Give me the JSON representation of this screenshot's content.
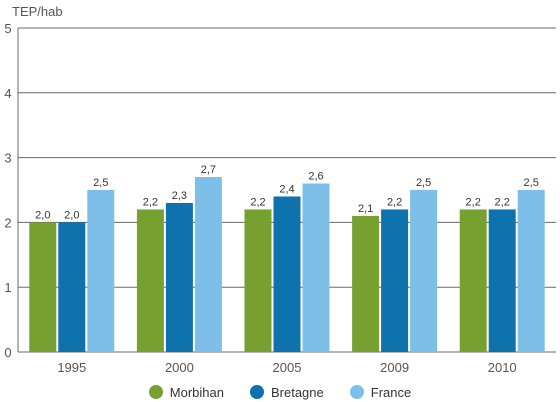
{
  "chart_data": {
    "type": "bar",
    "unit_label": "TEP/hab",
    "categories": [
      "1995",
      "2000",
      "2005",
      "2009",
      "2010"
    ],
    "series": [
      {
        "name": "Morbihan",
        "color": "#76a030",
        "values": [
          2.0,
          2.2,
          2.2,
          2.1,
          2.2
        ],
        "labels": [
          "2,0",
          "2,2",
          "2,2",
          "2,1",
          "2,2"
        ]
      },
      {
        "name": "Bretagne",
        "color": "#0e72ad",
        "values": [
          2.0,
          2.3,
          2.4,
          2.2,
          2.2
        ],
        "labels": [
          "2,0",
          "2,3",
          "2,4",
          "2,2",
          "2,2"
        ]
      },
      {
        "name": "France",
        "color": "#7dbfe8",
        "values": [
          2.5,
          2.7,
          2.6,
          2.5,
          2.5
        ],
        "labels": [
          "2,5",
          "2,7",
          "2,6",
          "2,5",
          "2,5"
        ]
      }
    ],
    "ylim": [
      0,
      5
    ],
    "yticks": [
      "0",
      "1",
      "2",
      "3",
      "4",
      "5"
    ],
    "grid": true,
    "legend_position": "bottom"
  }
}
